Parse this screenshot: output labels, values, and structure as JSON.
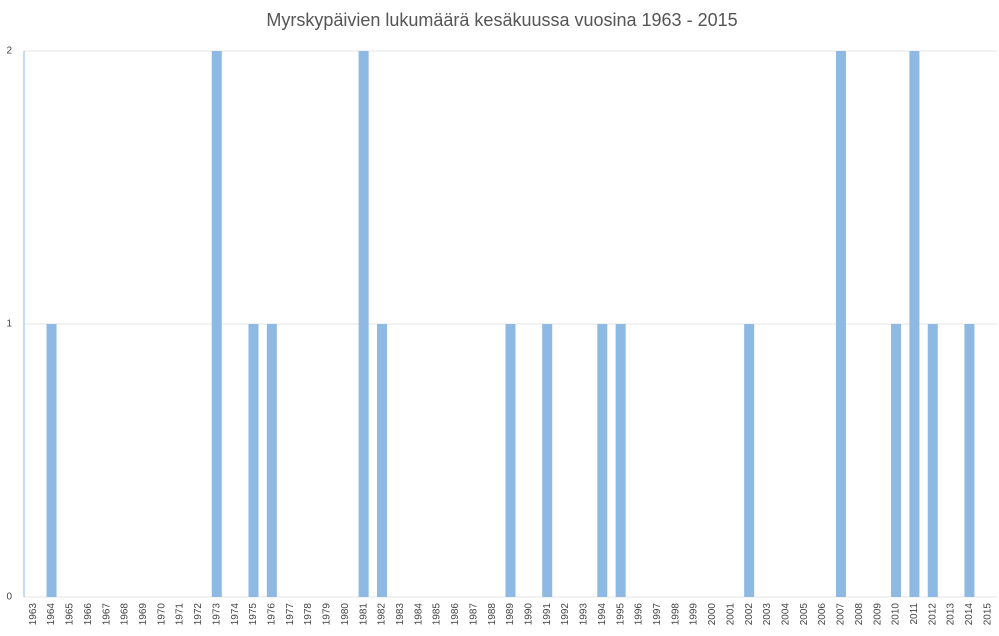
{
  "chart_data": {
    "type": "bar",
    "title": "Myrskypäivien lukumäärä kesäkuussa vuosina 1963 - 2015",
    "categories": [
      "1963",
      "1964",
      "1965",
      "1966",
      "1967",
      "1968",
      "1969",
      "1970",
      "1971",
      "1972",
      "1973",
      "1974",
      "1975",
      "1976",
      "1977",
      "1978",
      "1979",
      "1980",
      "1981",
      "1982",
      "1983",
      "1984",
      "1985",
      "1986",
      "1987",
      "1988",
      "1989",
      "1990",
      "1991",
      "1992",
      "1993",
      "1994",
      "1995",
      "1996",
      "1997",
      "1998",
      "1999",
      "2000",
      "2001",
      "2002",
      "2003",
      "2004",
      "2005",
      "2006",
      "2007",
      "2008",
      "2009",
      "2010",
      "2011",
      "2012",
      "2013",
      "2014",
      "2015"
    ],
    "values": [
      0,
      1,
      0,
      0,
      0,
      0,
      0,
      0,
      0,
      0,
      2,
      0,
      1,
      1,
      0,
      0,
      0,
      0,
      2,
      1,
      0,
      0,
      0,
      0,
      0,
      0,
      1,
      0,
      1,
      0,
      0,
      1,
      1,
      0,
      0,
      0,
      0,
      0,
      0,
      1,
      0,
      0,
      0,
      0,
      2,
      0,
      0,
      1,
      2,
      1,
      0,
      1,
      0
    ],
    "color": "#8db9e2",
    "ylim": [
      0,
      2
    ],
    "yticks": [
      0,
      1,
      2
    ],
    "grid": true
  }
}
